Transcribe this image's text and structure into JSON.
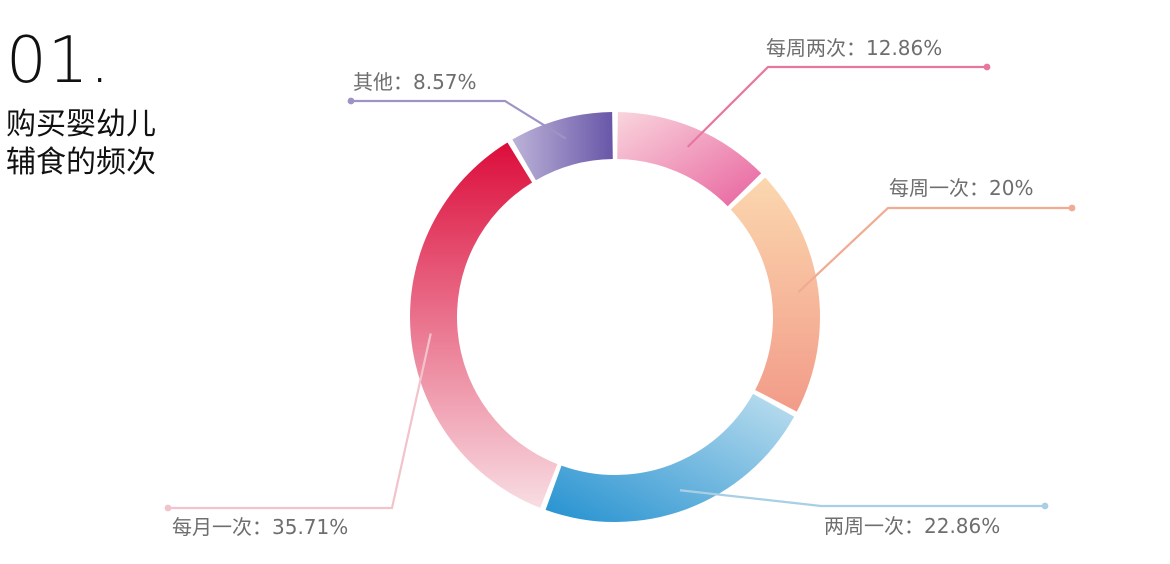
{
  "heading": {
    "number": "01.",
    "title": "购买婴幼儿辅食的频次"
  },
  "chart_data": {
    "type": "pie",
    "style": "donut",
    "title": "购买婴幼儿辅食的频次",
    "slices": [
      {
        "label": "每周两次",
        "value": 12.86,
        "color_start": "#f9d5dd",
        "color_end": "#e8629e",
        "line_color": "#e6779f"
      },
      {
        "label": "每周一次",
        "value": 20,
        "color_start": "#fbd7ae",
        "color_end": "#f29b89",
        "line_color": "#f0ab92"
      },
      {
        "label": "两周一次",
        "value": 22.86,
        "color_start": "#bfdfef",
        "color_end": "#2491d0",
        "line_color": "#a9cfe4"
      },
      {
        "label": "每月一次",
        "value": 35.71,
        "color_start": "#f8dde3",
        "color_end": "#dc0d3b",
        "line_color": "#f2c3ca"
      },
      {
        "label": "其他",
        "value": 8.57,
        "color_start": "#bcb3d8",
        "color_end": "#6856a8",
        "line_color": "#9f92c4"
      }
    ]
  }
}
